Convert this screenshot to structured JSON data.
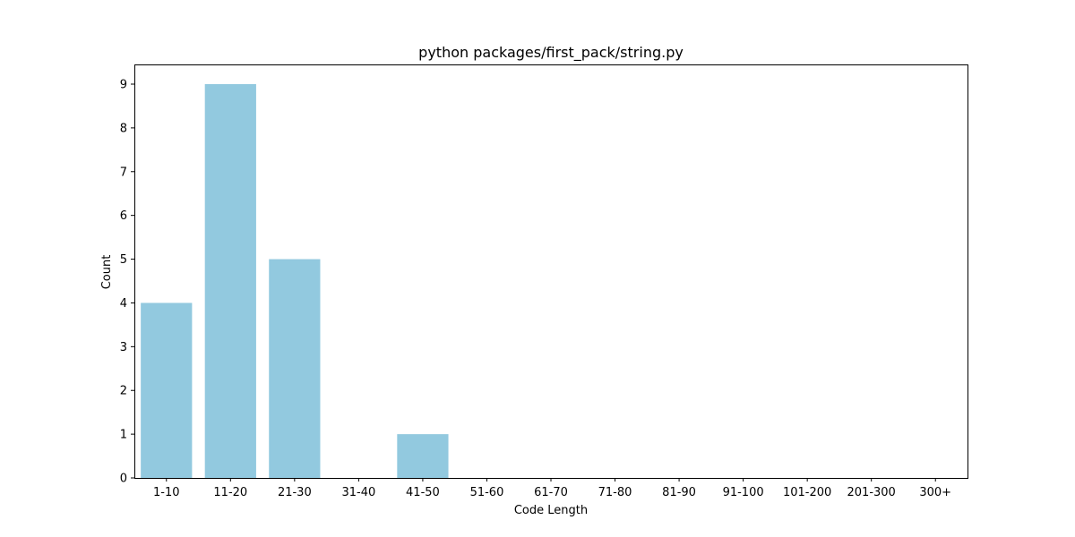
{
  "chart_data": {
    "type": "bar",
    "title": "python packages/first_pack/string.py",
    "xlabel": "Code Length",
    "ylabel": "Count",
    "categories": [
      "1-10",
      "11-20",
      "21-30",
      "31-40",
      "41-50",
      "51-60",
      "61-70",
      "71-80",
      "81-90",
      "91-100",
      "101-200",
      "201-300",
      "300+"
    ],
    "values": [
      4,
      9,
      5,
      0,
      1,
      0,
      0,
      0,
      0,
      0,
      0,
      0,
      0
    ],
    "ylim": [
      0,
      9.45
    ],
    "yticks": [
      0,
      1,
      2,
      3,
      4,
      5,
      6,
      7,
      8,
      9
    ],
    "grid": false,
    "bar_color": "#92c9df"
  }
}
